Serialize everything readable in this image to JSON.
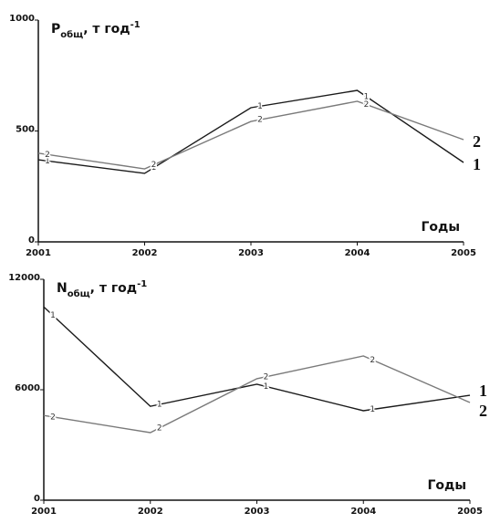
{
  "chart_data": [
    {
      "type": "line",
      "title_main": "P",
      "title_sub": "общ",
      "title_unit": ", т год",
      "title_sup": "-1",
      "x_label": "Годы",
      "x": [
        2001,
        2002,
        2003,
        2004,
        2005
      ],
      "xlim": [
        2001,
        2005
      ],
      "xticks": [
        2001,
        2002,
        2003,
        2004,
        2005
      ],
      "ylim": [
        0,
        1000
      ],
      "yticks": [
        0,
        500,
        1000
      ],
      "series": [
        {
          "name": "1",
          "color": "#1a1a1a",
          "values": [
            370,
            309,
            605,
            683,
            358
          ]
        },
        {
          "name": "2",
          "color": "#7a7a7a",
          "values": [
            400,
            329,
            543,
            634,
            461
          ]
        }
      ]
    },
    {
      "type": "line",
      "title_main": "N",
      "title_sub": "общ",
      "title_unit": ", т год",
      "title_sup": "-1",
      "x_label": "Годы",
      "x": [
        2001,
        2002,
        2003,
        2004,
        2005
      ],
      "xlim": [
        2001,
        2005
      ],
      "xticks": [
        2001,
        2002,
        2003,
        2004,
        2005
      ],
      "ylim": [
        0,
        12000
      ],
      "yticks": [
        0,
        6000,
        12000
      ],
      "series": [
        {
          "name": "1",
          "color": "#1a1a1a",
          "values": [
            10500,
            5100,
            6300,
            4860,
            5700
          ]
        },
        {
          "name": "2",
          "color": "#7a7a7a",
          "values": [
            4600,
            3670,
            6600,
            7835,
            5305
          ]
        }
      ]
    }
  ]
}
